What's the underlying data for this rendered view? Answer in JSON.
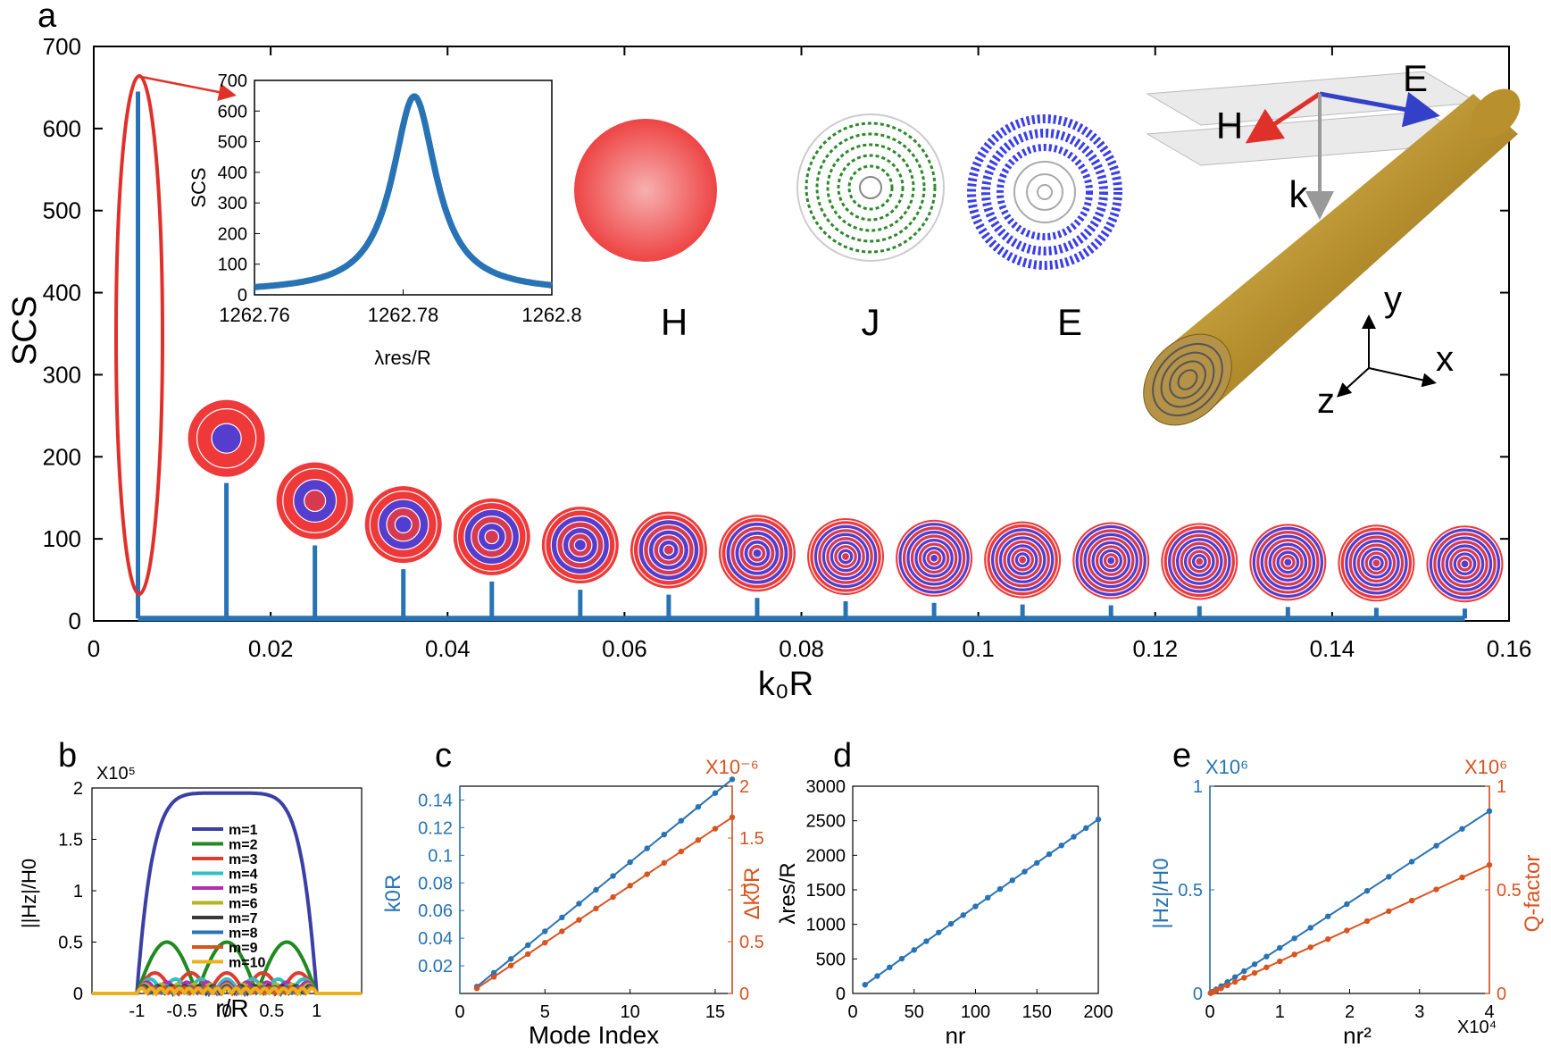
{
  "colors": {
    "blue": "#2873b5",
    "orange": "#d9531f",
    "red_outline": "#e0302a",
    "field_red": "#ee3a3a",
    "field_blue": "#3a3ee8",
    "current_green": "#2b8a2b",
    "gold": "#c9a24a",
    "axis": "#000000"
  },
  "labels": {
    "panel_a": "a",
    "panel_b": "b",
    "panel_c": "c",
    "panel_d": "d",
    "panel_e": "e",
    "field_H": "H",
    "field_J": "J",
    "field_E": "E",
    "axis_x": "x",
    "axis_y": "y",
    "axis_z": "z",
    "wave_H": "H",
    "wave_E": "E",
    "wave_k": "k"
  },
  "chart_data": [
    {
      "id": "a",
      "type": "bar",
      "xlabel": "k₀R",
      "ylabel": "SCS",
      "xlim": [
        0,
        0.16
      ],
      "ylim": [
        0,
        700
      ],
      "xticks": [
        0,
        0.02,
        0.04,
        0.06,
        0.08,
        0.1,
        0.12,
        0.14,
        0.16
      ],
      "xticklabels": [
        "0",
        "0.02",
        "0.04",
        "0.06",
        "0.08",
        "0.1",
        "0.12",
        "0.14",
        "0.16"
      ],
      "yticks": [
        0,
        100,
        200,
        300,
        400,
        500,
        600,
        700
      ],
      "yticklabels": [
        "0",
        "100",
        "200",
        "300",
        "400",
        "500",
        "600",
        "700"
      ],
      "peaks_x": [
        0.005,
        0.015,
        0.025,
        0.035,
        0.045,
        0.055,
        0.065,
        0.075,
        0.085,
        0.095,
        0.105,
        0.115,
        0.125,
        0.135,
        0.145,
        0.155
      ],
      "peaks_y": [
        645,
        168,
        92,
        63,
        48,
        38,
        32,
        28,
        24,
        22,
        20,
        19,
        18,
        17,
        16,
        15
      ]
    },
    {
      "id": "a_inset",
      "type": "line",
      "xlabel": "λres/R",
      "ylabel": "SCS",
      "xlim": [
        1262.76,
        1262.8
      ],
      "ylim": [
        0,
        700
      ],
      "xticks": [
        1262.76,
        1262.78,
        1262.8
      ],
      "xticklabels": [
        "1262.76",
        "1262.78",
        "1262.8"
      ],
      "yticks": [
        0,
        100,
        200,
        300,
        400,
        500,
        600,
        700
      ],
      "yticklabels": [
        "0",
        "100",
        "200",
        "300",
        "400",
        "500",
        "600",
        "700"
      ],
      "lorentz": {
        "center": 1262.7815,
        "hwhm": 0.0036,
        "peak": 640
      }
    },
    {
      "id": "b",
      "type": "line",
      "xlabel": "r/R",
      "ylabel": "||Hz|/H0",
      "exponent": "X10⁵",
      "xlim": [
        -1.5,
        1.5
      ],
      "ylim": [
        0,
        2
      ],
      "xticks": [
        -1,
        -0.5,
        0,
        0.5,
        1
      ],
      "xticklabels": [
        "-1",
        "-0.5",
        "0",
        "0.5",
        "1"
      ],
      "yticks": [
        0,
        0.5,
        1,
        1.5,
        2
      ],
      "yticklabels": [
        "0",
        "0.5",
        "1",
        "1.5",
        "2"
      ],
      "legend": [
        "m=1",
        "m=2",
        "m=3",
        "m=4",
        "m=5",
        "m=6",
        "m=7",
        "m=8",
        "m=9",
        "m=10"
      ],
      "series_colors": [
        "#3b3fa6",
        "#1f8a1f",
        "#e03b2e",
        "#2ec3c3",
        "#b12fb1",
        "#b5b51c",
        "#3a3a3a",
        "#2873b5",
        "#d9531f",
        "#edb120"
      ],
      "amplitudes": [
        1.95,
        0.5,
        0.2,
        0.14,
        0.11,
        0.09,
        0.075,
        0.065,
        0.058,
        0.05
      ]
    },
    {
      "id": "c",
      "type": "line",
      "xlabel": "Mode Index",
      "ylabel_left": "k0R",
      "ylabel_right": "Δk0R",
      "exponent_right": "X10⁻⁶",
      "xlim": [
        0,
        16
      ],
      "xticks": [
        0,
        5,
        10,
        15
      ],
      "xticklabels": [
        "0",
        "5",
        "10",
        "15"
      ],
      "ylim_left": [
        0,
        0.15
      ],
      "yticks_left": [
        0.02,
        0.04,
        0.06,
        0.08,
        0.1,
        0.12,
        0.14
      ],
      "yticklabels_left": [
        "0.02",
        "0.04",
        "0.06",
        "0.08",
        "0.1",
        "0.12",
        "0.14"
      ],
      "ylim_right": [
        0,
        2
      ],
      "yticks_right": [
        0,
        0.5,
        1,
        1.5,
        2
      ],
      "yticklabels_right": [
        "0",
        "0.5",
        "1",
        "1.5",
        "2"
      ],
      "x": [
        1,
        2,
        3,
        4,
        5,
        6,
        7,
        8,
        9,
        10,
        11,
        12,
        13,
        14,
        15,
        16
      ],
      "series": [
        {
          "name": "k0R",
          "axis": "left",
          "values": [
            0.005,
            0.015,
            0.025,
            0.035,
            0.045,
            0.055,
            0.065,
            0.075,
            0.085,
            0.095,
            0.105,
            0.115,
            0.125,
            0.135,
            0.145,
            0.155
          ]
        },
        {
          "name": "Δk0R",
          "axis": "right",
          "values": [
            0.05,
            0.16,
            0.27,
            0.38,
            0.49,
            0.6,
            0.71,
            0.82,
            0.93,
            1.04,
            1.15,
            1.26,
            1.37,
            1.48,
            1.59,
            1.7
          ]
        }
      ]
    },
    {
      "id": "d",
      "type": "line",
      "xlabel": "nr",
      "ylabel": "λres/R",
      "xlim": [
        0,
        200
      ],
      "xticks": [
        0,
        50,
        100,
        150,
        200
      ],
      "xticklabels": [
        "0",
        "50",
        "100",
        "150",
        "200"
      ],
      "ylim": [
        0,
        3000
      ],
      "yticks": [
        0,
        500,
        1000,
        1500,
        2000,
        2500,
        3000
      ],
      "yticklabels": [
        "0",
        "500",
        "1000",
        "1500",
        "2000",
        "2500",
        "3000"
      ],
      "x": [
        10,
        20,
        30,
        40,
        50,
        60,
        70,
        80,
        90,
        100,
        110,
        120,
        130,
        140,
        150,
        160,
        170,
        180,
        190,
        200
      ],
      "series": [
        {
          "name": "λres/R",
          "values": [
            126,
            252,
            378,
            504,
            630,
            756,
            882,
            1008,
            1134,
            1260,
            1386,
            1512,
            1638,
            1764,
            1890,
            2016,
            2142,
            2268,
            2394,
            2520
          ]
        }
      ]
    },
    {
      "id": "e",
      "type": "line",
      "xlabel": "nr²",
      "ylabel_left": "|Hz|/H0",
      "ylabel_right": "Q-factor",
      "exponent_left": "X10⁶",
      "exponent_right": "X10⁶",
      "exponent_x": "X10⁴",
      "xlim": [
        0,
        4
      ],
      "xticks": [
        0,
        1,
        2,
        3,
        4
      ],
      "xticklabels": [
        "0",
        "1",
        "2",
        "3",
        "4"
      ],
      "ylim_left": [
        0,
        1
      ],
      "yticks_left": [
        0,
        0.5,
        1
      ],
      "yticklabels_left": [
        "0",
        "0.5",
        "1"
      ],
      "ylim_right": [
        0,
        1
      ],
      "yticks_right": [
        0,
        0.5,
        1
      ],
      "yticklabels_right": [
        "0",
        "0.5",
        "1"
      ],
      "x": [
        0.01,
        0.04,
        0.09,
        0.16,
        0.25,
        0.36,
        0.49,
        0.64,
        0.81,
        1.0,
        1.21,
        1.44,
        1.69,
        1.96,
        2.25,
        2.56,
        2.89,
        3.24,
        3.61,
        4.0
      ],
      "series": [
        {
          "name": "|Hz|/H0",
          "axis": "left",
          "values": [
            0.002,
            0.009,
            0.02,
            0.035,
            0.055,
            0.079,
            0.108,
            0.141,
            0.178,
            0.22,
            0.266,
            0.317,
            0.372,
            0.431,
            0.495,
            0.563,
            0.636,
            0.713,
            0.794,
            0.88
          ]
        },
        {
          "name": "Q-factor",
          "axis": "right",
          "values": [
            0.0016,
            0.006,
            0.014,
            0.025,
            0.039,
            0.056,
            0.076,
            0.099,
            0.126,
            0.155,
            0.188,
            0.223,
            0.262,
            0.304,
            0.349,
            0.397,
            0.448,
            0.502,
            0.56,
            0.62
          ]
        }
      ]
    }
  ]
}
